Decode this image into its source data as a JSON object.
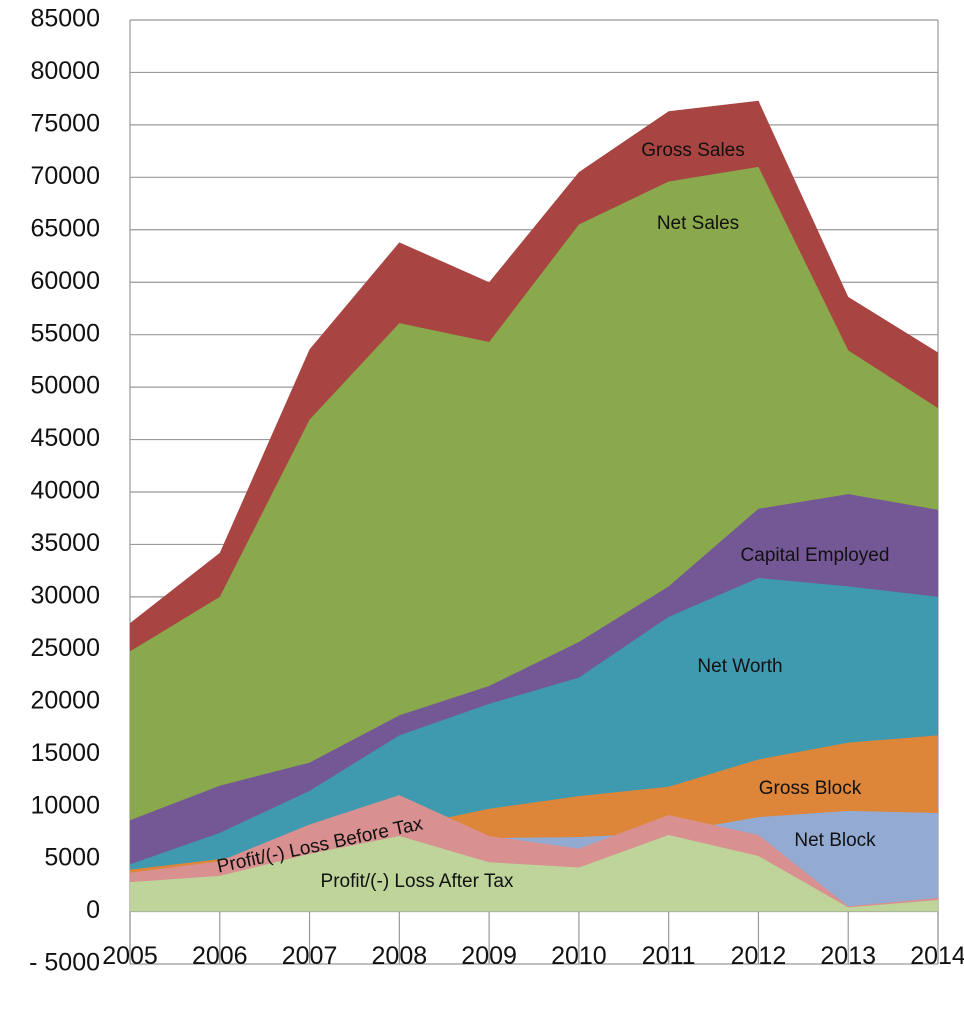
{
  "chart_data": {
    "type": "area",
    "categories": [
      "2005",
      "2006",
      "2007",
      "2008",
      "2009",
      "2010",
      "2011",
      "2012",
      "2013",
      "2014"
    ],
    "series": [
      {
        "name": "Gross Sales",
        "color": "#a84442",
        "values": [
          27500,
          34200,
          53600,
          63800,
          60000,
          70500,
          76300,
          77300,
          58600,
          53300
        ]
      },
      {
        "name": "Net Sales",
        "color": "#8aa84c",
        "values": [
          24800,
          30000,
          46900,
          56100,
          54300,
          65500,
          69600,
          71000,
          53500,
          48000
        ]
      },
      {
        "name": "Capital Employed",
        "color": "#735895",
        "values": [
          8700,
          12000,
          14200,
          18700,
          21500,
          25700,
          31000,
          38400,
          39800,
          38300
        ]
      },
      {
        "name": "Net Worth",
        "color": "#3f9aaf",
        "values": [
          4500,
          7500,
          11500,
          16800,
          19800,
          22300,
          28100,
          31800,
          31000,
          30000
        ]
      },
      {
        "name": "Gross Block",
        "color": "#dd8639",
        "values": [
          4000,
          5000,
          6500,
          8000,
          9800,
          11000,
          11900,
          14500,
          16100,
          16800
        ]
      },
      {
        "name": "Net Block",
        "color": "#93abd3",
        "values": [
          3500,
          4500,
          5500,
          6500,
          7000,
          7100,
          7500,
          9000,
          9600,
          9400
        ]
      },
      {
        "name": "Profit/(-) Loss Before Tax",
        "color": "#d89090",
        "values": [
          3700,
          4800,
          8300,
          11100,
          7200,
          6000,
          9200,
          7300,
          500,
          1300
        ]
      },
      {
        "name": "Profit/(-) Loss After Tax",
        "color": "#bed49a",
        "values": [
          2800,
          3400,
          5500,
          7200,
          4700,
          4200,
          7300,
          5300,
          400,
          1100
        ]
      }
    ],
    "ylim": [
      -5000,
      85000
    ],
    "yticks": [
      {
        "value": -5000,
        "label": "- 5000"
      },
      0,
      5000,
      10000,
      15000,
      20000,
      25000,
      30000,
      35000,
      40000,
      45000,
      50000,
      55000,
      60000,
      65000,
      70000,
      75000,
      80000,
      85000
    ],
    "grid": true
  }
}
